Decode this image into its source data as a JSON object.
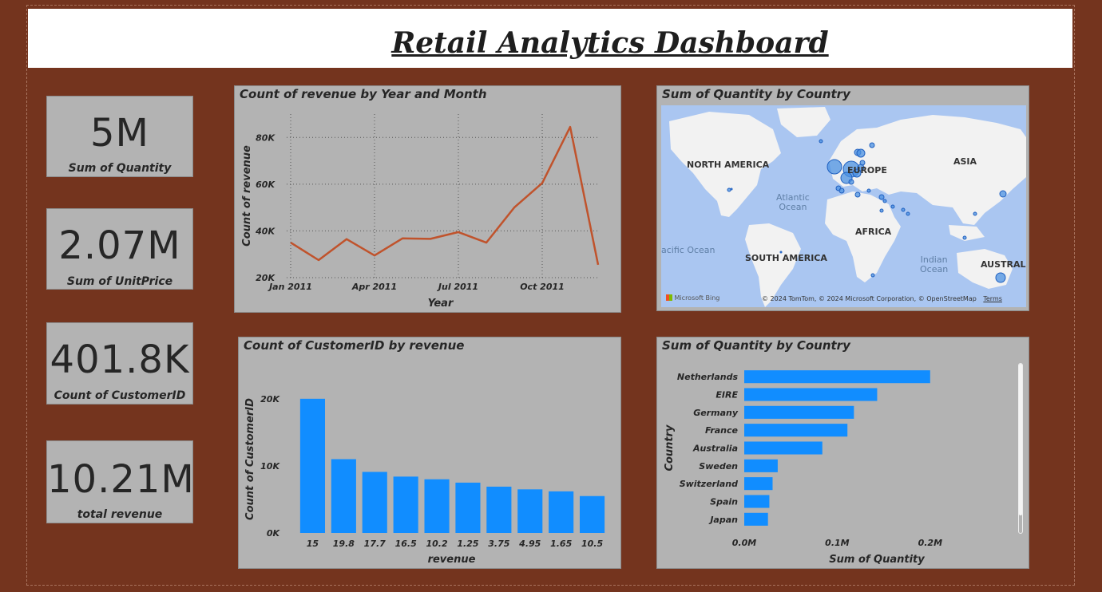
{
  "header": {
    "title": "Retail Analytics Dashboard"
  },
  "kpis": [
    {
      "value": "5M",
      "label": "Sum of Quantity"
    },
    {
      "value": "2.07M",
      "label": "Sum of UnitPrice"
    },
    {
      "value": "401.8K",
      "label": "Count of CustomerID"
    },
    {
      "value": "10.21M",
      "label": "total revenue"
    }
  ],
  "map": {
    "title": "Sum of Quantity by Country",
    "labels": {
      "north_america": "NORTH AMERICA",
      "europe": "EUROPE",
      "asia": "ASIA",
      "africa": "AFRICA",
      "south_america": "SOUTH AMERICA",
      "australia": "AUSTRALI"
    },
    "oceans": {
      "atlantic": "Atlantic\nOcean",
      "pacific": "acific Ocean",
      "indian": "Indian\nOcean"
    },
    "logo": "Microsoft Bing",
    "attribution": "© 2024 TomTom, © 2024 Microsoft Corporation, © OpenStreetMap",
    "terms": "Terms",
    "colors": {
      "land": "#f2f2f2",
      "water": "#aac6f1",
      "bubble": "#4a90e2"
    }
  },
  "chart_data": [
    {
      "type": "line",
      "title": "Count of revenue by Year and Month",
      "xlabel": "Year",
      "ylabel": "Count of revenue",
      "x": [
        "2011-01",
        "2011-02",
        "2011-03",
        "2011-04",
        "2011-05",
        "2011-06",
        "2011-07",
        "2011-08",
        "2011-09",
        "2011-10",
        "2011-11",
        "2011-12"
      ],
      "x_tick_labels": [
        "Jan 2011",
        "Apr 2011",
        "Jul 2011",
        "Oct 2011"
      ],
      "values": [
        35000,
        27500,
        36500,
        29500,
        36800,
        36600,
        39500,
        35000,
        50000,
        60500,
        84500,
        25500
      ],
      "yticks": [
        "20K",
        "40K",
        "60K",
        "80K"
      ],
      "ylim": [
        20000,
        90000
      ],
      "grid": true,
      "color": "#c0532c"
    },
    {
      "type": "bar",
      "title": "Count of CustomerID by revenue",
      "xlabel": "revenue",
      "ylabel": "Count of CustomerID",
      "categories": [
        "15",
        "19.8",
        "17.7",
        "16.5",
        "10.2",
        "1.25",
        "3.75",
        "4.95",
        "1.65",
        "10.5"
      ],
      "values": [
        20000,
        11000,
        9100,
        8400,
        8000,
        7500,
        6900,
        6500,
        6200,
        5500
      ],
      "yticks": [
        "0K",
        "10K",
        "20K"
      ],
      "ylim": [
        0,
        22000
      ],
      "color": "#118dff"
    },
    {
      "type": "bar",
      "orientation": "horizontal",
      "title": "Sum of Quantity by Country",
      "xlabel": "Sum of Quantity",
      "ylabel": "Country",
      "categories": [
        "Netherlands",
        "EIRE",
        "Germany",
        "France",
        "Australia",
        "Sweden",
        "Switzerland",
        "Spain",
        "Japan"
      ],
      "values": [
        200000,
        143000,
        118000,
        111000,
        84000,
        36000,
        30500,
        27000,
        25500
      ],
      "xticks": [
        "0.0M",
        "0.1M",
        "0.2M"
      ],
      "xlim": [
        0,
        250000
      ],
      "color": "#118dff"
    }
  ]
}
